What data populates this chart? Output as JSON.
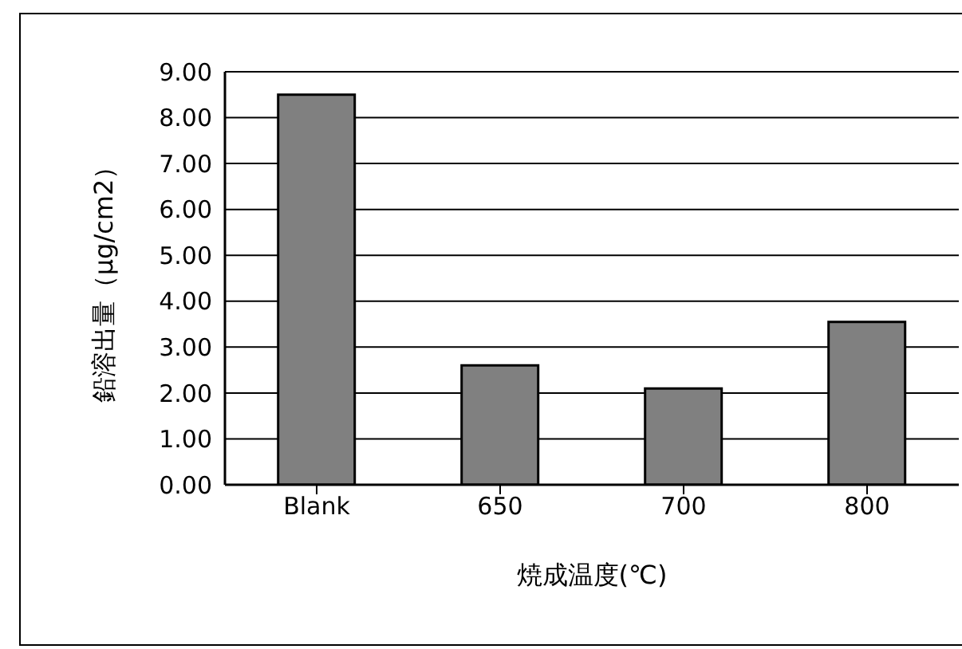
{
  "chart_data": {
    "type": "bar",
    "xlabel": "焼成温度(℃)",
    "ylabel": "鉛溶出量（μg/cm2）",
    "categories": [
      "Blank",
      "650",
      "700",
      "800"
    ],
    "values": [
      8.5,
      2.6,
      2.1,
      3.55
    ],
    "color": "#808080",
    "ylim": [
      0,
      9
    ],
    "yticks": [
      {
        "value": 0,
        "label": "0.00"
      },
      {
        "value": 1,
        "label": "1.00"
      },
      {
        "value": 2,
        "label": "2.00"
      },
      {
        "value": 3,
        "label": "3.00"
      },
      {
        "value": 4,
        "label": "4.00"
      },
      {
        "value": 5,
        "label": "5.00"
      },
      {
        "value": 6,
        "label": "6.00"
      },
      {
        "value": 7,
        "label": "7.00"
      },
      {
        "value": 8,
        "label": "8.00"
      },
      {
        "value": 9,
        "label": "9.00"
      }
    ],
    "grid": "y"
  }
}
